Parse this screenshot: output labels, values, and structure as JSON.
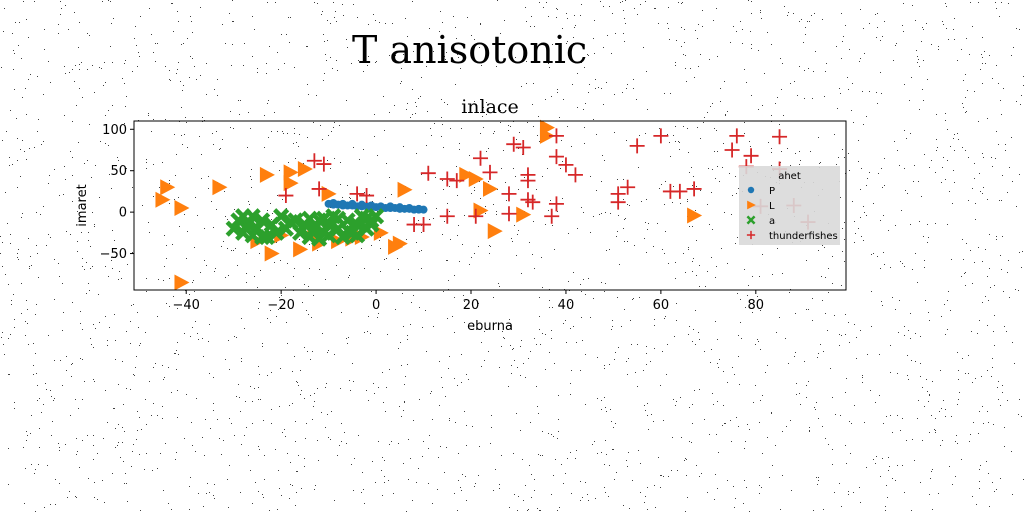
{
  "figure": {
    "suptitle": "T anisotonic"
  },
  "chart_data": {
    "type": "scatter",
    "title": "inlace",
    "xlabel": "eburna",
    "ylabel": "imaret",
    "xlim": [
      -51,
      99
    ],
    "ylim": [
      -94,
      110
    ],
    "xticks": [
      -40,
      -20,
      0,
      20,
      40,
      60,
      80
    ],
    "xtick_labels": [
      "−40",
      "−20",
      "0",
      "20",
      "40",
      "60",
      "80"
    ],
    "yticks": [
      -50,
      0,
      50,
      100
    ],
    "ytick_labels": [
      "−50",
      "0",
      "50",
      "100"
    ],
    "grid": false,
    "legend": {
      "title": "ahet",
      "placement": "right"
    },
    "series": [
      {
        "name": "P",
        "marker": "circle",
        "color": "#1f77b4",
        "points": [
          [
            -10,
            10
          ],
          [
            -9,
            9
          ],
          [
            -8,
            9
          ],
          [
            -7,
            8
          ],
          [
            -6,
            8
          ],
          [
            -5,
            8
          ],
          [
            -4,
            7
          ],
          [
            -3,
            7
          ],
          [
            -2,
            7
          ],
          [
            -1,
            6
          ],
          [
            0,
            6
          ],
          [
            1,
            6
          ],
          [
            2,
            5
          ],
          [
            3,
            5
          ],
          [
            4,
            5
          ],
          [
            5,
            4
          ],
          [
            6,
            4
          ],
          [
            7,
            4
          ],
          [
            8,
            3
          ],
          [
            9,
            3
          ],
          [
            10,
            3
          ],
          [
            -9,
            11
          ],
          [
            -7,
            10
          ],
          [
            -5,
            10
          ],
          [
            -3,
            9
          ],
          [
            -1,
            8
          ],
          [
            1,
            7
          ],
          [
            3,
            7
          ],
          [
            5,
            6
          ],
          [
            7,
            5
          ],
          [
            9,
            4
          ]
        ]
      },
      {
        "name": "L",
        "marker": "triangle-right",
        "color": "#ff7f0e",
        "points": [
          [
            -44,
            30
          ],
          [
            -45,
            15
          ],
          [
            -41,
            5
          ],
          [
            -33,
            30
          ],
          [
            -23,
            45
          ],
          [
            -18,
            48
          ],
          [
            -18,
            35
          ],
          [
            -15,
            52
          ],
          [
            -10,
            22
          ],
          [
            6,
            27
          ],
          [
            19,
            45
          ],
          [
            21,
            40
          ],
          [
            24,
            28
          ],
          [
            22,
            2
          ],
          [
            25,
            -23
          ],
          [
            31,
            -3
          ],
          [
            36,
            102
          ],
          [
            36,
            92
          ],
          [
            67,
            -4
          ],
          [
            -41,
            -85
          ],
          [
            -22,
            -50
          ],
          [
            -16,
            -45
          ],
          [
            -12,
            -38
          ],
          [
            -8,
            -35
          ],
          [
            -5,
            -32
          ],
          [
            -3,
            -30
          ],
          [
            1,
            -25
          ],
          [
            4,
            -42
          ],
          [
            5,
            -38
          ],
          [
            -25,
            -35
          ],
          [
            -20,
            -28
          ],
          [
            -13,
            -25
          ]
        ]
      },
      {
        "name": "a",
        "marker": "x",
        "color": "#2ca02c",
        "points": [
          [
            -30,
            -20
          ],
          [
            -29,
            -10
          ],
          [
            -28,
            -25
          ],
          [
            -27,
            -15
          ],
          [
            -26,
            -5
          ],
          [
            -25,
            -20
          ],
          [
            -24,
            -10
          ],
          [
            -23,
            -30
          ],
          [
            -22,
            -15
          ],
          [
            -21,
            -25
          ],
          [
            -20,
            -5
          ],
          [
            -19,
            -20
          ],
          [
            -17,
            -10
          ],
          [
            -16,
            -25
          ],
          [
            -15,
            -15
          ],
          [
            -14,
            -30
          ],
          [
            -13,
            -20
          ],
          [
            -12,
            -10
          ],
          [
            -11,
            -25
          ],
          [
            -10,
            -15
          ],
          [
            -9,
            -5
          ],
          [
            -8,
            -20
          ],
          [
            -7,
            -30
          ],
          [
            -6,
            -10
          ],
          [
            -5,
            -25
          ],
          [
            -4,
            -15
          ],
          [
            -3,
            -5
          ],
          [
            -2,
            -20
          ],
          [
            -1,
            -10
          ],
          [
            0,
            -5
          ],
          [
            -28,
            -5
          ],
          [
            -24,
            -30
          ],
          [
            -18,
            -12
          ],
          [
            -14,
            -8
          ],
          [
            -11,
            -8
          ],
          [
            -10,
            -28
          ],
          [
            -8,
            -8
          ],
          [
            -6,
            -22
          ],
          [
            -4,
            -28
          ],
          [
            -2,
            -8
          ],
          [
            -1,
            -15
          ],
          [
            -12,
            -32
          ],
          [
            -26,
            -28
          ]
        ]
      },
      {
        "name": "thunderfishes",
        "marker": "plus",
        "color": "#d62728",
        "points": [
          [
            -13,
            62
          ],
          [
            -11,
            58
          ],
          [
            -19,
            20
          ],
          [
            -12,
            28
          ],
          [
            -4,
            22
          ],
          [
            -2,
            20
          ],
          [
            8,
            -15
          ],
          [
            10,
            -15
          ],
          [
            11,
            47
          ],
          [
            15,
            40
          ],
          [
            15,
            -5
          ],
          [
            17,
            38
          ],
          [
            21,
            -5
          ],
          [
            22,
            65
          ],
          [
            24,
            48
          ],
          [
            28,
            -2
          ],
          [
            28,
            22
          ],
          [
            29,
            82
          ],
          [
            31,
            78
          ],
          [
            32,
            45
          ],
          [
            32,
            38
          ],
          [
            32,
            15
          ],
          [
            33,
            12
          ],
          [
            37,
            -5
          ],
          [
            38,
            10
          ],
          [
            38,
            92
          ],
          [
            38,
            67
          ],
          [
            40,
            57
          ],
          [
            42,
            45
          ],
          [
            53,
            30
          ],
          [
            51,
            22
          ],
          [
            51,
            12
          ],
          [
            55,
            80
          ],
          [
            60,
            92
          ],
          [
            62,
            25
          ],
          [
            64,
            25
          ],
          [
            67,
            28
          ],
          [
            75,
            75
          ],
          [
            76,
            92
          ],
          [
            78,
            55
          ],
          [
            79,
            68
          ],
          [
            81,
            7
          ],
          [
            85,
            91
          ],
          [
            85,
            52
          ],
          [
            88,
            8
          ],
          [
            91,
            -12
          ]
        ]
      }
    ]
  }
}
